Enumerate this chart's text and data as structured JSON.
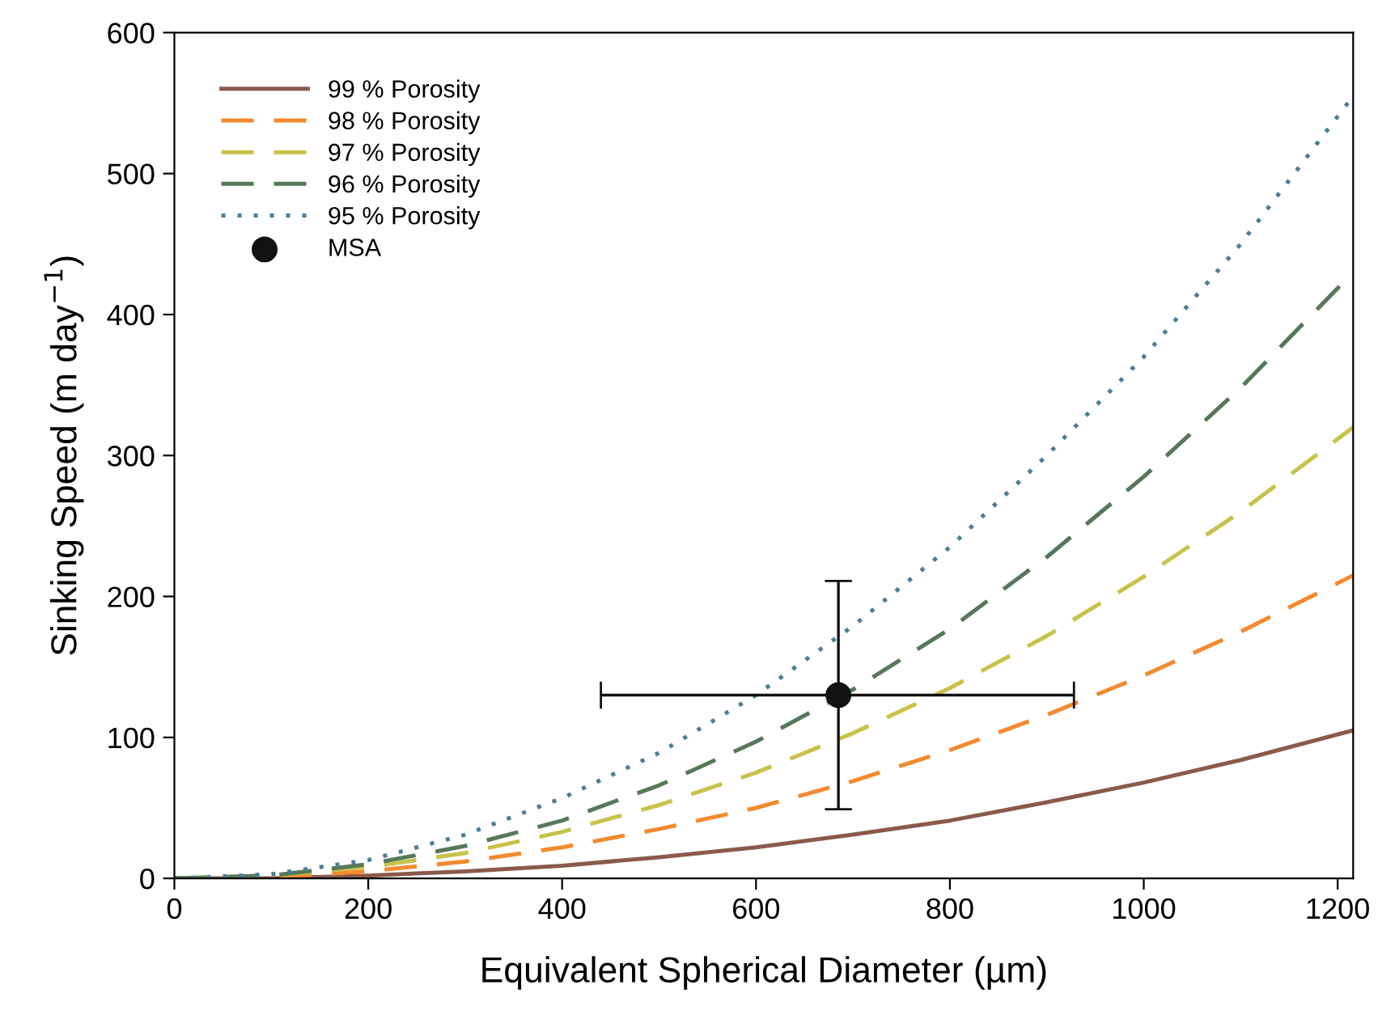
{
  "chart_data": {
    "type": "line",
    "xlabel": "Equivalent Spherical Diameter (µm)",
    "ylabel": "Sinking Speed (m day$^{−1}$)",
    "xlim": [
      0,
      1216
    ],
    "ylim": [
      0,
      600
    ],
    "xticks": [
      0,
      200,
      400,
      600,
      800,
      1000,
      1200
    ],
    "yticks": [
      0,
      100,
      200,
      300,
      400,
      500,
      600
    ],
    "grid": false,
    "legend": "top left",
    "marker": "none",
    "series": [
      {
        "name": "99 % Porosity",
        "color": "#8b5a4a",
        "line_style": "solid",
        "x": [
          0,
          100,
          200,
          300,
          400,
          500,
          600,
          700,
          800,
          900,
          1000,
          1100,
          1216
        ],
        "values": [
          0,
          0,
          2,
          5,
          9,
          15,
          22,
          31,
          41,
          54,
          68,
          84,
          105
        ]
      },
      {
        "name": "98 % Porosity",
        "color": "#f28a2e",
        "line_style": "dashed",
        "x": [
          0,
          100,
          200,
          300,
          400,
          500,
          600,
          700,
          800,
          900,
          1000,
          1100,
          1216
        ],
        "values": [
          0,
          1,
          5,
          12,
          22,
          35,
          50,
          69,
          91,
          116,
          144,
          175,
          215
        ]
      },
      {
        "name": "97 % Porosity",
        "color": "#c9c24a",
        "line_style": "dashed",
        "x": [
          0,
          100,
          200,
          300,
          400,
          500,
          600,
          700,
          800,
          900,
          1000,
          1100,
          1216
        ],
        "values": [
          0,
          2,
          8,
          18,
          33,
          52,
          75,
          103,
          135,
          172,
          214,
          260,
          320
        ]
      },
      {
        "name": "96 % Porosity",
        "color": "#56785a",
        "line_style": "dashed",
        "x": [
          0,
          100,
          200,
          300,
          400,
          500,
          600,
          700,
          800,
          900,
          1000,
          1100,
          1216
        ],
        "values": [
          0,
          2,
          10,
          23,
          41,
          66,
          97,
          134,
          177,
          228,
          285,
          348,
          430
        ]
      },
      {
        "name": "95 % Porosity",
        "color": "#4a7f95",
        "line_style": "dotted",
        "x": [
          0,
          100,
          200,
          300,
          400,
          500,
          600,
          700,
          800,
          900,
          1000,
          1100,
          1216
        ],
        "values": [
          0,
          3,
          13,
          31,
          57,
          89,
          130,
          179,
          235,
          300,
          370,
          450,
          555
        ]
      },
      {
        "name": "MSA",
        "type": "scatter",
        "marker": "circle",
        "color": "#111111",
        "x": [
          685
        ],
        "values": [
          130
        ],
        "errors": [
          [
            49,
            211
          ]
        ],
        "xerrors": [
          [
            440,
            928
          ]
        ]
      }
    ]
  }
}
